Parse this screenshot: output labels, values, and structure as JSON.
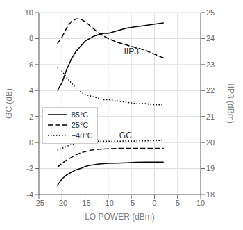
{
  "chart_data": {
    "type": "line",
    "x_label": "LO POWER (dBm)",
    "y_label": "GC (dB)",
    "y2_label": "IIP3 (dBm)",
    "xlim": [
      -25,
      10
    ],
    "xticks": [
      -25,
      -20,
      -15,
      -10,
      -5,
      0,
      5,
      10
    ],
    "ylim": [
      -4,
      10
    ],
    "yticks": [
      -4,
      -2,
      0,
      2,
      4,
      6,
      8,
      10
    ],
    "y2lim": [
      18,
      25
    ],
    "y2ticks": [
      18,
      19,
      20,
      21,
      22,
      23,
      24,
      25
    ],
    "grid": true,
    "legend": "lower left",
    "x": [
      -21,
      -20,
      -19,
      -18,
      -17,
      -16,
      -15,
      -14,
      -13,
      -12,
      -11,
      -10,
      -8,
      -6,
      -4,
      -2,
      0,
      2
    ],
    "series": [
      {
        "name": "85°C",
        "color": "#000000",
        "line_style": "solid",
        "axis": "y2",
        "values": [
          22.0,
          22.3,
          22.8,
          23.2,
          23.5,
          23.7,
          23.9,
          24.0,
          24.1,
          24.15,
          24.2,
          24.2,
          24.3,
          24.4,
          24.45,
          24.5,
          24.55,
          24.6
        ]
      },
      {
        "name": "25°C",
        "color": "#000000",
        "line_style": "dashed",
        "axis": "y2",
        "values": [
          23.8,
          24.05,
          24.4,
          24.65,
          24.75,
          24.75,
          24.65,
          24.5,
          24.35,
          24.2,
          24.1,
          24.0,
          23.85,
          23.75,
          23.65,
          23.55,
          23.4,
          23.25
        ]
      },
      {
        "name": "−40°C",
        "color": "#000000",
        "line_style": "dotted",
        "axis": "y2",
        "values": [
          22.9,
          22.75,
          22.5,
          22.3,
          22.1,
          21.95,
          21.85,
          21.8,
          21.75,
          21.7,
          21.65,
          21.65,
          21.6,
          21.55,
          21.5,
          21.5,
          21.45,
          21.45
        ]
      },
      {
        "name": "85°C",
        "color": "#000000",
        "line_style": "solid",
        "axis": "y",
        "values": [
          -3.3,
          -2.8,
          -2.5,
          -2.3,
          -2.1,
          -2.0,
          -1.85,
          -1.75,
          -1.7,
          -1.65,
          -1.62,
          -1.6,
          -1.58,
          -1.55,
          -1.52,
          -1.5,
          -1.5,
          -1.5
        ]
      },
      {
        "name": "25°C",
        "color": "#000000",
        "line_style": "dashed",
        "axis": "y",
        "values": [
          -1.9,
          -1.6,
          -1.35,
          -1.15,
          -0.95,
          -0.8,
          -0.7,
          -0.6,
          -0.55,
          -0.52,
          -0.5,
          -0.48,
          -0.45,
          -0.45,
          -0.45,
          -0.45,
          -0.45,
          -0.45
        ]
      },
      {
        "name": "−40°C",
        "color": "#000000",
        "line_style": "dotted",
        "axis": "y",
        "values": [
          -0.6,
          -0.45,
          -0.3,
          -0.15,
          -0.05,
          0.0,
          0.05,
          0.08,
          0.1,
          0.1,
          0.1,
          0.1,
          0.1,
          0.12,
          0.12,
          0.13,
          0.15,
          0.15
        ]
      }
    ],
    "annotations": [
      {
        "text": "IIP3",
        "x": -7.5,
        "y": 23.5,
        "axis": "y2"
      },
      {
        "text": "GC",
        "x": -8.5,
        "y": 0.55,
        "axis": "y"
      }
    ]
  }
}
